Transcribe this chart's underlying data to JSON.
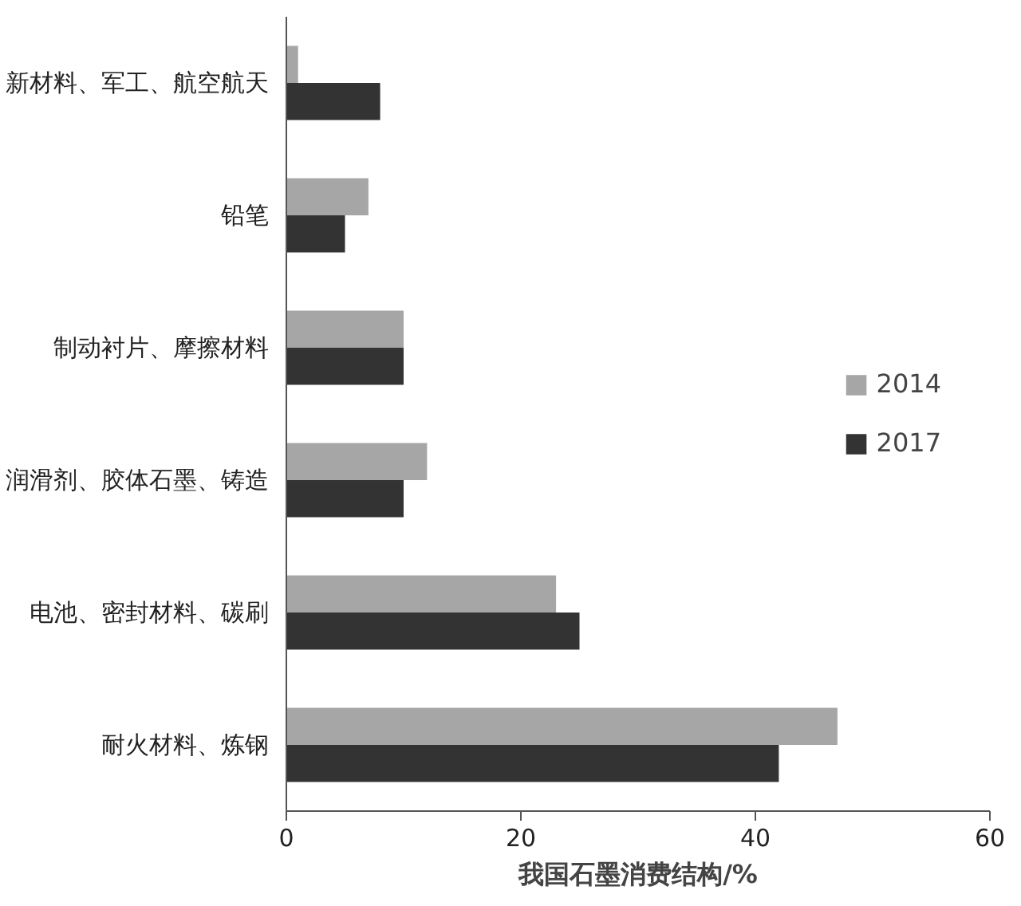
{
  "chart_data": {
    "type": "bar",
    "orientation": "horizontal",
    "xlabel": "我国石墨消费结构/%",
    "categories": [
      "新材料、军工、航空航天",
      "铅笔",
      "制动衬片、摩擦材料",
      "润滑剂、胶体石墨、铸造",
      "电池、密封材料、碳刷",
      "耐火材料、炼钢"
    ],
    "series": [
      {
        "name": "2014",
        "color": "#a6a6a6",
        "values": [
          1,
          7,
          10,
          12,
          23,
          47
        ]
      },
      {
        "name": "2017",
        "color": "#333333",
        "values": [
          8,
          5,
          10,
          10,
          25,
          42
        ]
      }
    ],
    "xlim": [
      0,
      60
    ],
    "xticks": [
      0,
      20,
      40,
      60
    ],
    "grid": false,
    "legend": "right"
  }
}
